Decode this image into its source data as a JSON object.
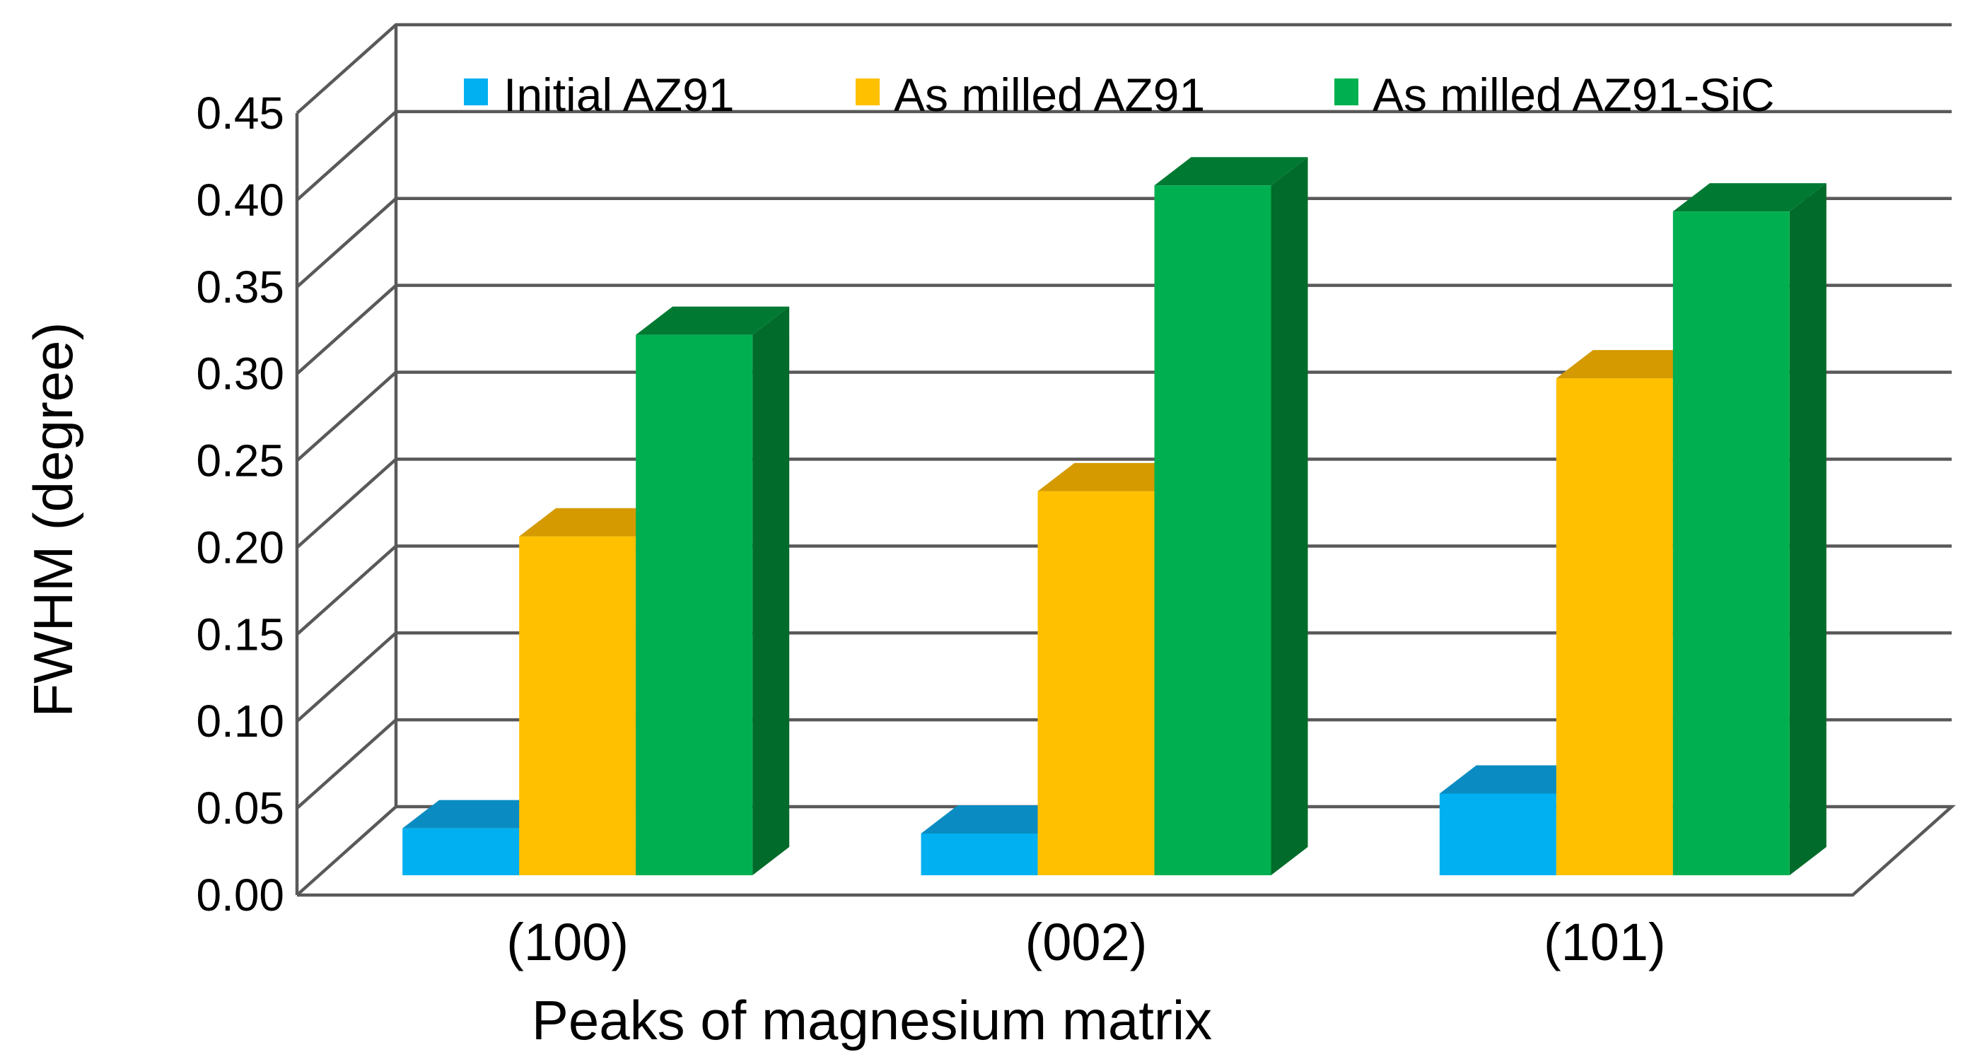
{
  "chart_data": {
    "type": "bar",
    "style": "3d-clustered-column",
    "title": "",
    "xlabel": "Peaks of magnesium matrix",
    "ylabel": "FWHM (degree)",
    "ylim": [
      0,
      0.45
    ],
    "yticks": [
      "0.00",
      "0.05",
      "0.10",
      "0.15",
      "0.20",
      "0.25",
      "0.30",
      "0.35",
      "0.40",
      "0.45"
    ],
    "categories": [
      "(100)",
      "(002)",
      "(101)"
    ],
    "series": [
      {
        "name": "Initial AZ91",
        "values": [
          0.027,
          0.024,
          0.047
        ],
        "color": "#00b0f0",
        "top": "#0a8cc2",
        "side": "#0077a8"
      },
      {
        "name": "As milled AZ91",
        "values": [
          0.195,
          0.221,
          0.286
        ],
        "color": "#ffc000",
        "top": "#d49a00",
        "side": "#b38000"
      },
      {
        "name": "As milled AZ91-SiC",
        "values": [
          0.311,
          0.397,
          0.382
        ],
        "color": "#00b050",
        "top": "#007a33",
        "side": "#006b2b"
      }
    ],
    "legend": "top"
  }
}
